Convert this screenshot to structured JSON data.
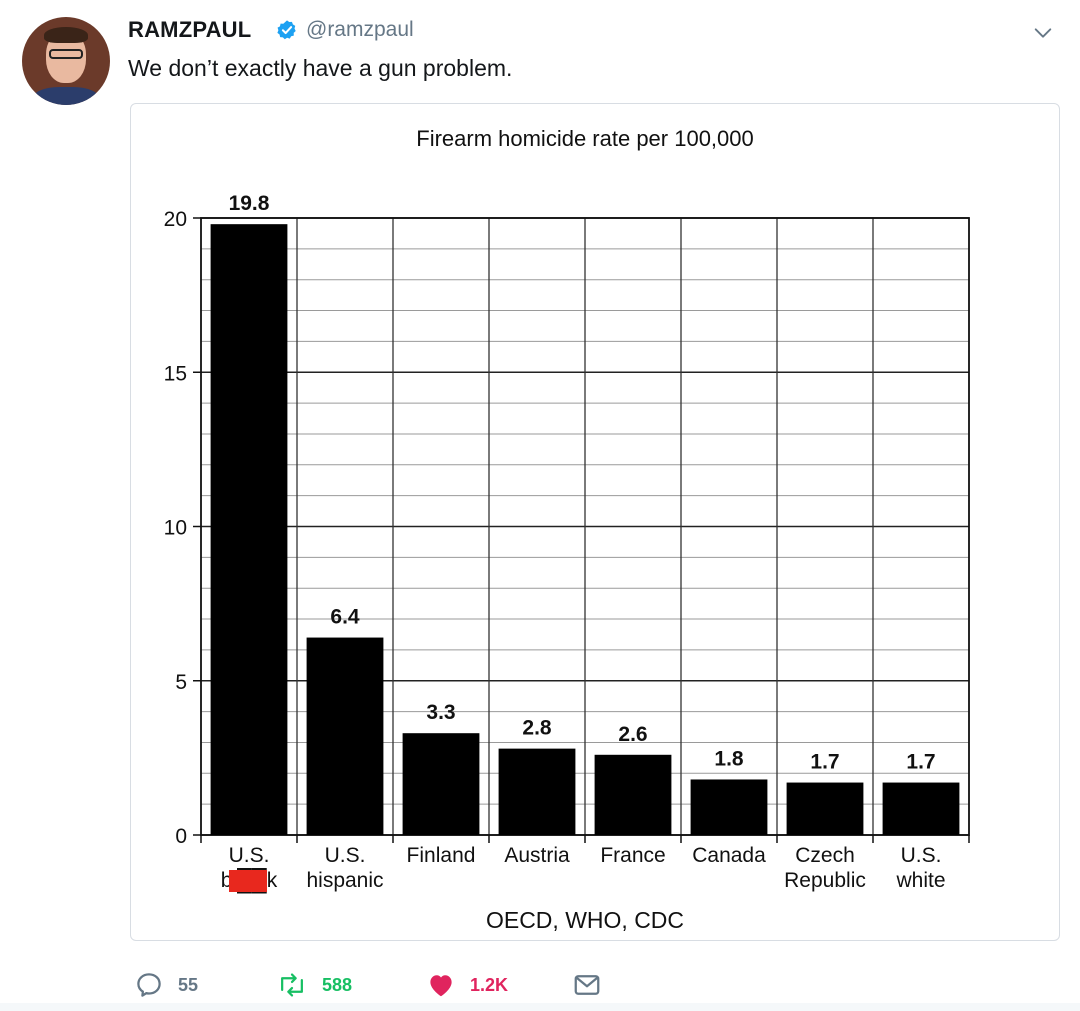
{
  "tweet": {
    "display_name": "RAMZPAUL",
    "handle": "@ramzpaul",
    "text": "We don’t exactly have a gun problem.",
    "verified": true,
    "avatar_icon": "profile-photo",
    "menu_icon": "chevron-down-icon"
  },
  "chart_data": {
    "type": "bar",
    "title": "Firearm homicide rate per 100,000",
    "source_note": "OECD, WHO, CDC",
    "categories": [
      [
        "U.S.",
        "bl██k"
      ],
      [
        "U.S.",
        "hispanic"
      ],
      [
        "Finland"
      ],
      [
        "Austria"
      ],
      [
        "France"
      ],
      [
        "Canada"
      ],
      [
        "Czech",
        "Republic"
      ],
      [
        "U.S.",
        "white"
      ]
    ],
    "values": [
      19.8,
      6.4,
      3.3,
      2.8,
      2.6,
      1.8,
      1.7,
      1.7
    ],
    "value_labels": [
      "19.8",
      "6.4",
      "3.3",
      "2.8",
      "2.6",
      "1.8",
      "1.7",
      "1.7"
    ],
    "yticks": [
      "0",
      "5",
      "10",
      "15",
      "20"
    ],
    "ylim": [
      0,
      20
    ],
    "grid": true,
    "bar_color": "#000000",
    "censor_color": "#e8281e"
  },
  "actions": {
    "reply_count": "55",
    "retweet_count": "588",
    "like_count": "1.2K"
  },
  "colors": {
    "accent_blue": "#1da1f2",
    "retweet_green": "#17bf63",
    "like_red": "#e0245e",
    "muted": "#657786"
  }
}
